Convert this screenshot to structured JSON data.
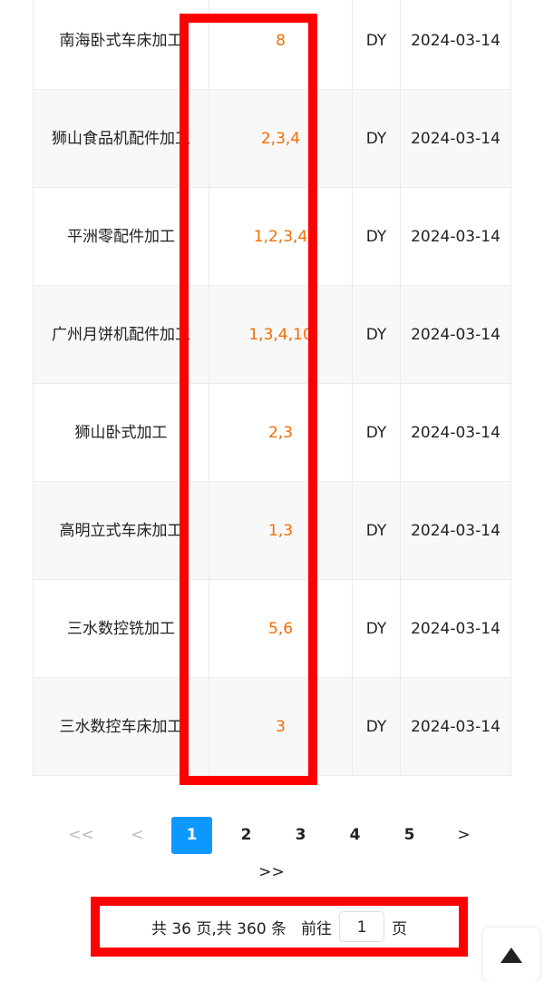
{
  "rows": [
    {
      "name": "南海卧式车床加工",
      "nums": "8",
      "code": "DY",
      "date": "2024-03-14"
    },
    {
      "name": "狮山食品机配件加工",
      "nums": "2,3,4",
      "code": "DY",
      "date": "2024-03-14"
    },
    {
      "name": "平洲零配件加工",
      "nums": "1,2,3,4",
      "code": "DY",
      "date": "2024-03-14"
    },
    {
      "name": "广州月饼机配件加工",
      "nums": "1,3,4,10",
      "code": "DY",
      "date": "2024-03-14"
    },
    {
      "name": "狮山卧式加工",
      "nums": "2,3",
      "code": "DY",
      "date": "2024-03-14"
    },
    {
      "name": "高明立式车床加工",
      "nums": "1,3",
      "code": "DY",
      "date": "2024-03-14"
    },
    {
      "name": "三水数控铣加工",
      "nums": "5,6",
      "code": "DY",
      "date": "2024-03-14"
    },
    {
      "name": "三水数控车床加工",
      "nums": "3",
      "code": "DY",
      "date": "2024-03-14"
    }
  ],
  "pagination": {
    "first": "<<",
    "prev": "<",
    "pages": [
      "1",
      "2",
      "3",
      "4",
      "5"
    ],
    "current": "1",
    "next": ">",
    "last": ">>",
    "summary": "共 36 页,共 360 条",
    "goto_label": "前往",
    "goto_value": "1",
    "page_unit": "页"
  },
  "colors": {
    "highlight": "#ff0000",
    "accent": "#0d98ff",
    "number_text": "#f56c00"
  },
  "back_to_top_icon": "triangle-up-icon"
}
